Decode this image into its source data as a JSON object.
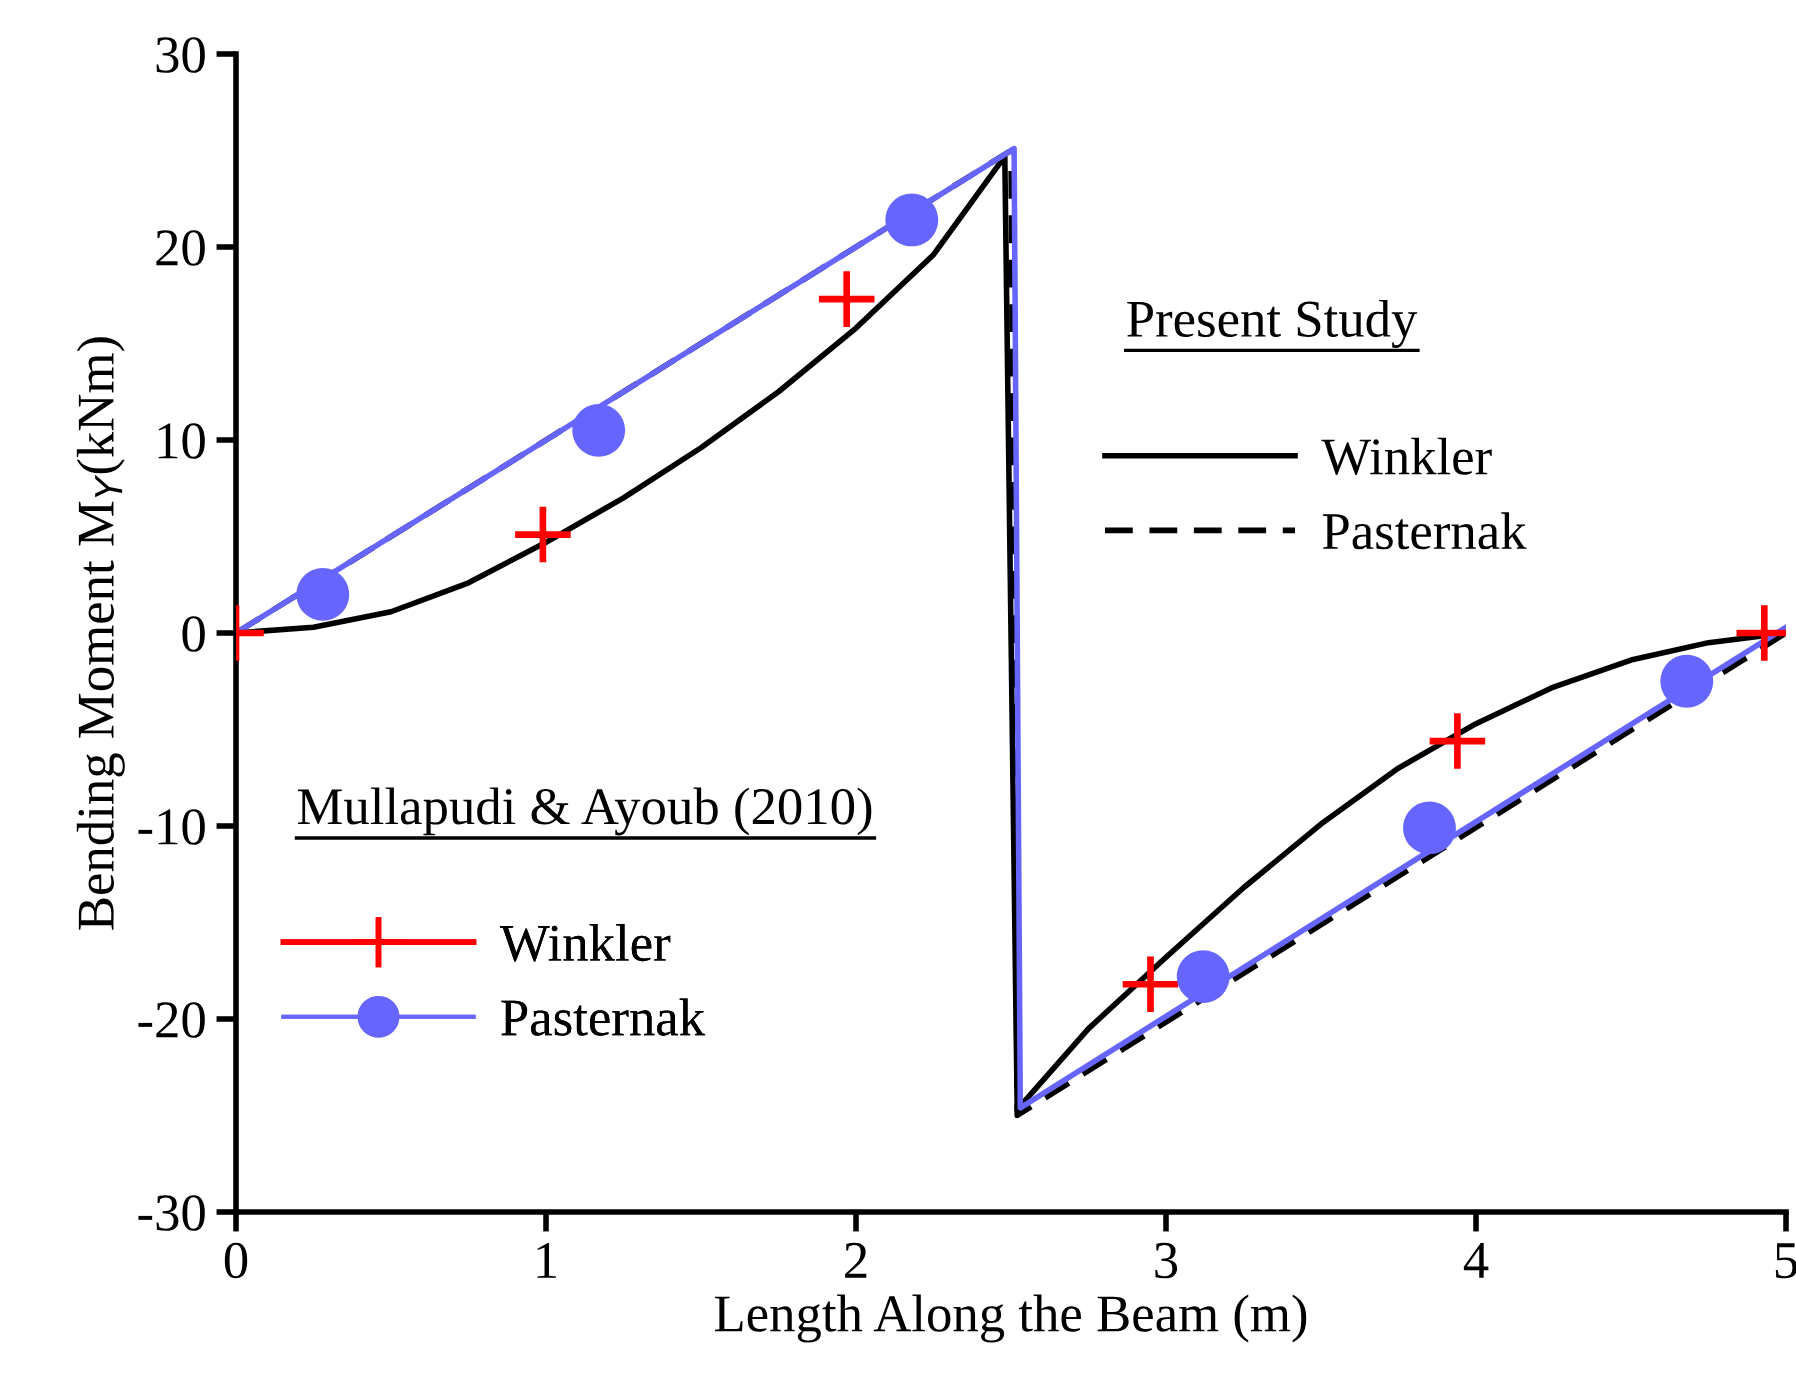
{
  "chart_data": {
    "type": "line",
    "xlabel": "Length Along the Beam (m)",
    "ylabel": "Bending Moment M$_{Y}$(kNm)",
    "xlim": [
      0,
      5
    ],
    "ylim": [
      -30,
      30
    ],
    "xticks": [
      0,
      1,
      2,
      3,
      4,
      5
    ],
    "yticks": [
      -30,
      -20,
      -10,
      0,
      10,
      20,
      30
    ],
    "grid": false,
    "legend": "bottom left",
    "annotations": [
      "Present Study",
      "Mullapudi & Ayoub (2010)"
    ],
    "series": [
      {
        "name": "Winkler",
        "color": "#000000",
        "line_style": "solid",
        "marker": "none",
        "x": [
          0,
          0.25,
          0.5,
          0.75,
          1,
          1.25,
          1.5,
          1.75,
          2,
          2.25,
          2.48,
          2.52,
          2.75,
          3,
          3.25,
          3.5,
          3.75,
          4,
          4.25,
          4.5,
          4.75,
          5
        ],
        "values": [
          0,
          0.3,
          1.1,
          2.6,
          4.7,
          7,
          9.6,
          12.5,
          15.8,
          19.6,
          24.7,
          -24.7,
          -20.5,
          -16.8,
          -13.2,
          -9.9,
          -7,
          -4.7,
          -2.8,
          -1.4,
          -0.5,
          0
        ]
      },
      {
        "name": "Pasternak",
        "color": "#000000",
        "line_style": "dashed",
        "marker": "none",
        "x": [
          0,
          2.5,
          2.52,
          5
        ],
        "values": [
          0,
          25,
          -25,
          0
        ]
      },
      {
        "name": "Winkler",
        "type": "scatter",
        "color": "#ff0000",
        "marker": "cross",
        "x": [
          0,
          0.99,
          1.97,
          2.95,
          3.94,
          4.93
        ],
        "values": [
          0,
          5.1,
          17.3,
          -18.2,
          -5.6,
          0
        ]
      },
      {
        "name": "Pasternak",
        "type": "scatter",
        "color": "#6666ff",
        "marker": "circle",
        "x": [
          0.28,
          1.17,
          2.18,
          3.12,
          3.85,
          4.68
        ],
        "values": [
          2,
          10.5,
          21.4,
          -17.8,
          -10.1,
          -2.5
        ]
      },
      {
        "color": "#6666ff",
        "line_style": "solid",
        "marker": "none",
        "x": [
          0,
          2.51,
          2.53,
          5
        ],
        "values": [
          0,
          25.1,
          -24.6,
          0.3
        ]
      }
    ]
  }
}
